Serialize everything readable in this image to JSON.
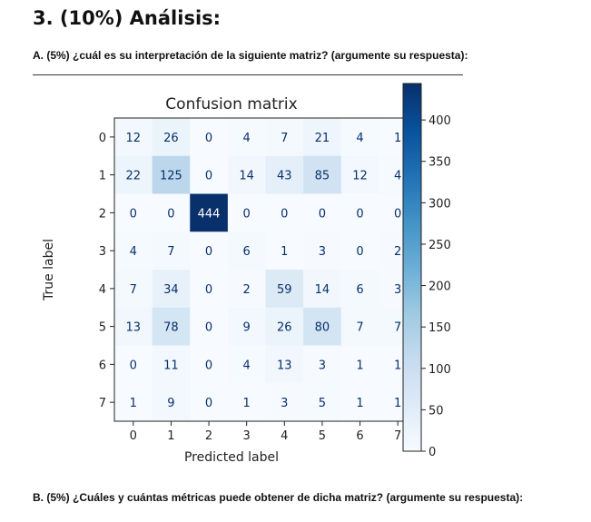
{
  "heading": "3. (10%) Análisis:",
  "question_a": "A. (5%) ¿cuál es su interpretación de la siguiente matriz? (argumente su respuesta):",
  "question_b": "B. (5%) ¿Cuáles y cuántas métricas puede obtener de dicha matriz? (argumente su respuesta):",
  "chart_data": {
    "type": "heatmap",
    "title": "Confusion matrix",
    "xlabel": "Predicted label",
    "ylabel": "True label",
    "x_ticks": [
      "0",
      "1",
      "2",
      "3",
      "4",
      "5",
      "6",
      "7"
    ],
    "y_ticks": [
      "0",
      "1",
      "2",
      "3",
      "4",
      "5",
      "6",
      "7"
    ],
    "matrix": [
      [
        12,
        26,
        0,
        4,
        7,
        21,
        4,
        1
      ],
      [
        22,
        125,
        0,
        14,
        43,
        85,
        12,
        4
      ],
      [
        0,
        0,
        444,
        0,
        0,
        0,
        0,
        0
      ],
      [
        4,
        7,
        0,
        6,
        1,
        3,
        0,
        2
      ],
      [
        7,
        34,
        0,
        2,
        59,
        14,
        6,
        3
      ],
      [
        13,
        78,
        0,
        9,
        26,
        80,
        7,
        7
      ],
      [
        0,
        11,
        0,
        4,
        13,
        3,
        1,
        1
      ],
      [
        1,
        9,
        0,
        1,
        3,
        5,
        1,
        1
      ]
    ],
    "colormap": "Blues",
    "colorbar": {
      "range": [
        0,
        444
      ],
      "ticks": [
        0,
        50,
        100,
        150,
        200,
        250,
        300,
        350,
        400
      ]
    },
    "colors": {
      "low": "#f7fbff",
      "high": "#08306b",
      "text_dark": "#08306b",
      "text_light": "#ffffff"
    }
  }
}
